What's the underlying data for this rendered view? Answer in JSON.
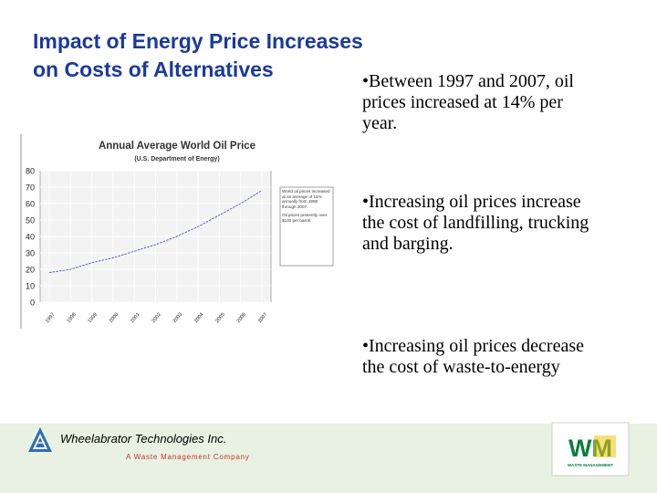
{
  "slide": {
    "title_line1": "Impact of Energy Price Increases",
    "title_line2": "on Costs of Alternatives",
    "bullets": [
      "•Between 1997 and 2007, oil prices increased at 14% per year.",
      "•Increasing oil prices increase the cost of landfilling, trucking and barging.",
      "•Increasing oil prices decrease the cost of waste-to-energy"
    ],
    "footer": {
      "company": "Wheelabrator Technologies Inc.",
      "tagline": "A Waste Management Company",
      "wm_logo_text": "WM",
      "wm_logo_subtext": "WASTE MANAGEMENT"
    },
    "colors": {
      "title": "#1a3a9c",
      "series_line": "#5566b8",
      "footer_band": "#e8f1e2",
      "wm_green": "#0b7d3e",
      "wm_yellow": "#f4c20d"
    }
  },
  "chart_data": {
    "type": "line",
    "title": "Annual Average World Oil Price",
    "subtitle": "(U.S. Department of Energy)",
    "categories": [
      "1997",
      "1998",
      "1999",
      "2000",
      "2001",
      "2002",
      "2003",
      "2004",
      "2005",
      "2006",
      "2007"
    ],
    "series": [
      {
        "values": [
          18,
          20,
          24,
          27,
          31,
          35,
          40,
          46,
          53,
          60,
          68
        ]
      }
    ],
    "yticks": [
      "80",
      "70",
      "60",
      "50",
      "40",
      "30",
      "20",
      "10",
      "0"
    ],
    "ylim": [
      0,
      80
    ],
    "grid": true,
    "annotation": {
      "line1": "World oil prices increased at an average of 14% annually from 1998 through 2007.",
      "line2": "Oil prices presently over $100 per barrel."
    }
  }
}
